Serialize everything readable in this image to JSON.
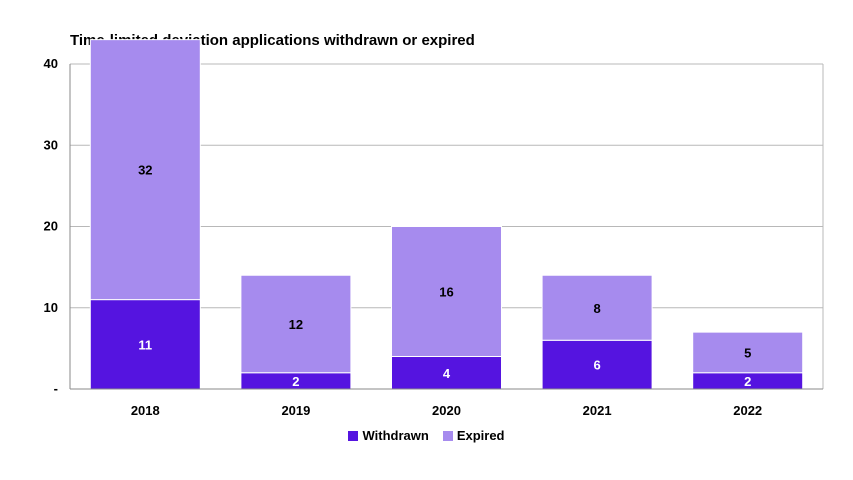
{
  "chart_data": {
    "type": "bar",
    "stacked": true,
    "title": "Time-limited deviation applications withdrawn or expired",
    "xlabel": "",
    "ylabel": "",
    "categories": [
      "2018",
      "2019",
      "2020",
      "2021",
      "2022"
    ],
    "series": [
      {
        "name": "Withdrawn",
        "values": [
          11,
          2,
          4,
          6,
          2
        ],
        "color": "#5514e0",
        "label_color": "#ffffff"
      },
      {
        "name": "Expired",
        "values": [
          32,
          12,
          16,
          8,
          5
        ],
        "color": "#a68bee",
        "label_color": "#000000"
      }
    ],
    "ylim": [
      0,
      40
    ],
    "yticks": [
      0,
      10,
      20,
      30,
      40
    ],
    "ytick_labels": [
      "-",
      "10",
      "20",
      "30",
      "40"
    ],
    "grid": true,
    "legend": "bottom"
  }
}
